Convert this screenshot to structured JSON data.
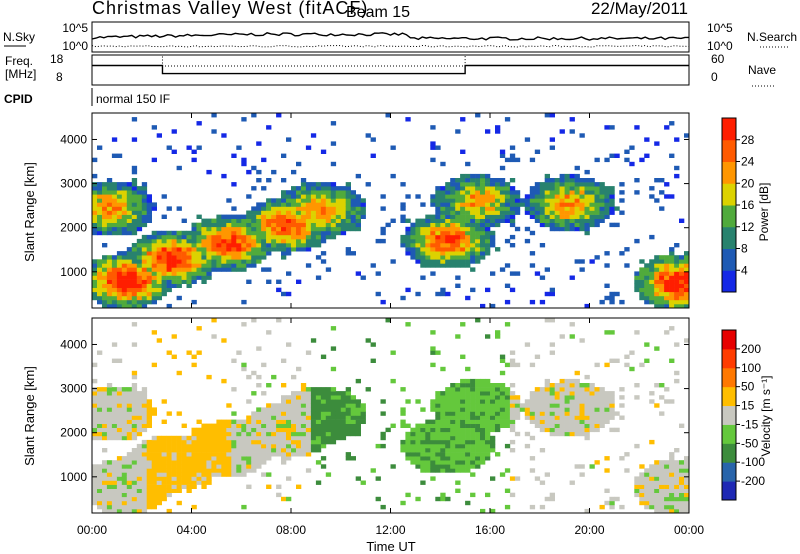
{
  "header": {
    "title": "Christmas Valley West (fitACF)",
    "beam": "Beam 15",
    "date": "22/May/2011"
  },
  "noise_panel": {
    "left_label": "N.Sky",
    "right_label": "N.Search",
    "left_ticks": [
      "10^5",
      "10^0"
    ],
    "right_ticks": [
      "10^5",
      "10^0"
    ]
  },
  "freq_panel": {
    "left_label_1": "Freq.",
    "left_label_2": "[MHz]",
    "left_ticks": [
      "18",
      "8"
    ],
    "right_label": "Nave",
    "right_ticks": [
      "60",
      "0"
    ]
  },
  "cpid_panel": {
    "label": "CPID",
    "mode": "normal 150 IF"
  },
  "time_axis": {
    "label": "Time UT",
    "ticks": [
      "00:00",
      "04:00",
      "08:00",
      "12:00",
      "16:00",
      "20:00",
      "00:00"
    ]
  },
  "range_axis": {
    "label": "Slant Range [km]",
    "ticks": [
      "1000",
      "2000",
      "3000",
      "4000"
    ]
  },
  "colorbars": {
    "power": {
      "label": "Power [dB]",
      "ticks": [
        "4",
        "8",
        "12",
        "16",
        "20",
        "24",
        "28"
      ],
      "colors": [
        "#1428e6",
        "#1e5ab4",
        "#28826e",
        "#50aa3c",
        "#dcd200",
        "#ff9600",
        "#ff5a00",
        "#ff1e00"
      ]
    },
    "velocity": {
      "label": "Velocity [m s⁻¹]",
      "ticks": [
        "200",
        "100",
        "50",
        "15",
        "-15",
        "-50",
        "-100",
        "-200"
      ],
      "colors": [
        "#1e28b4",
        "#2864aa",
        "#3c8c3c",
        "#64c83c",
        "#c8c8c0",
        "#ffbe00",
        "#ff7800",
        "#ff3c00",
        "#e60000"
      ]
    }
  },
  "chart_data": [
    {
      "type": "line",
      "title": "",
      "series": [
        {
          "name": "N.Sky",
          "style": "solid"
        },
        {
          "name": "N.Search",
          "style": "dotted"
        }
      ],
      "ylim": [
        "10^0",
        "10^5"
      ]
    },
    {
      "type": "line",
      "ylabel": "Freq. [MHz]",
      "x": [
        "00:00",
        "02:50",
        "02:50",
        "15:00",
        "15:00",
        "24:00"
      ],
      "series": [
        {
          "name": "Freq.",
          "style": "solid",
          "values": [
            14.5,
            14.5,
            11.8,
            11.8,
            14.5,
            14.5
          ]
        },
        {
          "name": "Nave",
          "style": "dotted",
          "values": [
            60,
            60,
            38,
            38,
            60,
            60
          ]
        }
      ],
      "ylim": [
        8,
        18
      ],
      "y2lim": [
        0,
        60
      ]
    },
    {
      "type": "heatmap",
      "variable": "Power [dB]",
      "xlabel": "Time UT",
      "ylabel": "Slant Range [km]",
      "xlim": [
        "00:00",
        "24:00"
      ],
      "ylim": [
        180,
        4600
      ],
      "clim": [
        0,
        30
      ],
      "features": [
        {
          "t": 1.4,
          "r": 800,
          "level_db": 30
        },
        {
          "t": 3.2,
          "r": 1300,
          "level_db": 28
        },
        {
          "t": 5.5,
          "r": 1650,
          "level_db": 27
        },
        {
          "t": 7.8,
          "r": 2050,
          "level_db": 26
        },
        {
          "t": 9.2,
          "r": 2400,
          "level_db": 22
        },
        {
          "t": 0.7,
          "r": 2450,
          "level_db": 22
        },
        {
          "t": 14.3,
          "r": 1700,
          "level_db": 26
        },
        {
          "t": 15.5,
          "r": 2600,
          "level_db": 20
        },
        {
          "t": 19.2,
          "r": 2550,
          "level_db": 22
        },
        {
          "t": 23.6,
          "r": 750,
          "level_db": 30
        }
      ]
    },
    {
      "type": "heatmap",
      "variable": "Velocity [m s⁻¹]",
      "xlabel": "Time UT",
      "ylabel": "Slant Range [km]",
      "xlim": [
        "00:00",
        "24:00"
      ],
      "ylim": [
        180,
        4600
      ],
      "clim": [
        -200,
        200
      ],
      "features": [
        {
          "t": 1.4,
          "r": 800,
          "velocity": 0
        },
        {
          "t": 3.2,
          "r": 1300,
          "velocity": -30
        },
        {
          "t": 7.8,
          "r": 2050,
          "velocity": 0
        },
        {
          "t": 9.8,
          "r": 2200,
          "velocity": 60
        },
        {
          "t": 14.3,
          "r": 1700,
          "velocity": 40
        },
        {
          "t": 19.2,
          "r": 2550,
          "velocity": 0
        },
        {
          "t": 23.6,
          "r": 750,
          "velocity": 0
        }
      ]
    }
  ]
}
